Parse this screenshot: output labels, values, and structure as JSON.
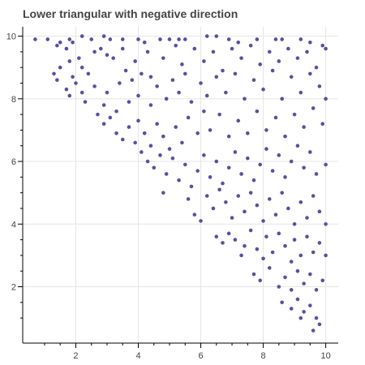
{
  "chart_data": {
    "type": "scatter",
    "title": "Lower triangular with negative direction",
    "xlabel": "",
    "ylabel": "",
    "xlim": [
      0.3,
      10.4
    ],
    "ylim": [
      0.2,
      10.3
    ],
    "x_ticks": [
      2,
      4,
      6,
      8,
      10
    ],
    "y_ticks": [
      2,
      4,
      6,
      8,
      10
    ],
    "grid": true,
    "marker_color": "#5a4fa0",
    "points_rule": "y > 10 - x (lower triangular, negative direction); values read approximately from the plot",
    "points": [
      [
        0.7,
        9.9
      ],
      [
        1.1,
        9.9
      ],
      [
        1.4,
        9.7
      ],
      [
        1.5,
        9.8
      ],
      [
        1.7,
        9.6
      ],
      [
        1.8,
        9.9
      ],
      [
        1.9,
        9.8
      ],
      [
        2.2,
        10.0
      ],
      [
        2.5,
        9.9
      ],
      [
        2.9,
        10.0
      ],
      [
        3.1,
        9.9
      ],
      [
        3.5,
        9.9
      ],
      [
        4.0,
        9.9
      ],
      [
        4.2,
        9.8
      ],
      [
        4.7,
        9.9
      ],
      [
        5.0,
        9.9
      ],
      [
        5.3,
        9.9
      ],
      [
        5.5,
        9.9
      ],
      [
        6.2,
        10.0
      ],
      [
        6.5,
        10.0
      ],
      [
        6.9,
        9.9
      ],
      [
        7.2,
        9.8
      ],
      [
        7.8,
        9.9
      ],
      [
        8.4,
        9.9
      ],
      [
        8.6,
        9.9
      ],
      [
        9.2,
        9.9
      ],
      [
        9.5,
        9.8
      ],
      [
        9.9,
        9.7
      ],
      [
        1.3,
        8.8
      ],
      [
        1.4,
        8.6
      ],
      [
        1.5,
        9.0
      ],
      [
        1.8,
        9.2
      ],
      [
        1.9,
        8.7
      ],
      [
        2.1,
        9.3
      ],
      [
        2.2,
        9.0
      ],
      [
        2.4,
        8.8
      ],
      [
        2.6,
        9.5
      ],
      [
        2.8,
        9.6
      ],
      [
        3.0,
        9.4
      ],
      [
        3.2,
        9.3
      ],
      [
        3.5,
        9.6
      ],
      [
        3.6,
        8.9
      ],
      [
        3.9,
        9.2
      ],
      [
        4.3,
        9.5
      ],
      [
        4.4,
        8.7
      ],
      [
        4.8,
        9.3
      ],
      [
        5.2,
        9.7
      ],
      [
        5.4,
        9.1
      ],
      [
        5.8,
        9.6
      ],
      [
        6.1,
        9.2
      ],
      [
        6.4,
        9.5
      ],
      [
        6.7,
        8.9
      ],
      [
        7.0,
        9.6
      ],
      [
        7.3,
        9.3
      ],
      [
        7.6,
        9.7
      ],
      [
        7.9,
        9.1
      ],
      [
        8.2,
        9.5
      ],
      [
        8.5,
        9.2
      ],
      [
        8.8,
        9.6
      ],
      [
        9.1,
        9.3
      ],
      [
        9.4,
        9.5
      ],
      [
        9.7,
        9.0
      ],
      [
        10.0,
        9.6
      ],
      [
        1.7,
        8.3
      ],
      [
        1.8,
        8.1
      ],
      [
        2.0,
        8.5
      ],
      [
        2.2,
        8.2
      ],
      [
        2.3,
        7.9
      ],
      [
        2.6,
        8.4
      ],
      [
        2.9,
        7.8
      ],
      [
        3.0,
        8.2
      ],
      [
        3.3,
        7.6
      ],
      [
        3.4,
        8.5
      ],
      [
        3.7,
        7.9
      ],
      [
        3.8,
        8.6
      ],
      [
        4.0,
        8.1
      ],
      [
        4.1,
        8.8
      ],
      [
        4.4,
        7.8
      ],
      [
        4.6,
        8.4
      ],
      [
        4.9,
        8.0
      ],
      [
        5.1,
        8.6
      ],
      [
        5.3,
        8.2
      ],
      [
        5.5,
        8.8
      ],
      [
        5.7,
        7.9
      ],
      [
        6.0,
        8.5
      ],
      [
        6.2,
        8.1
      ],
      [
        6.5,
        8.7
      ],
      [
        6.8,
        8.2
      ],
      [
        7.1,
        8.8
      ],
      [
        7.4,
        8.0
      ],
      [
        7.7,
        8.6
      ],
      [
        8.0,
        8.3
      ],
      [
        8.3,
        8.9
      ],
      [
        8.6,
        8.0
      ],
      [
        8.9,
        8.7
      ],
      [
        9.2,
        8.2
      ],
      [
        9.5,
        8.8
      ],
      [
        9.8,
        8.4
      ],
      [
        10.0,
        8.0
      ],
      [
        2.7,
        7.5
      ],
      [
        2.9,
        7.2
      ],
      [
        3.1,
        7.4
      ],
      [
        3.3,
        6.9
      ],
      [
        3.5,
        6.7
      ],
      [
        3.7,
        7.1
      ],
      [
        3.9,
        6.6
      ],
      [
        4.0,
        7.3
      ],
      [
        4.2,
        6.9
      ],
      [
        4.4,
        6.5
      ],
      [
        4.6,
        7.2
      ],
      [
        4.8,
        6.8
      ],
      [
        5.0,
        6.4
      ],
      [
        5.2,
        7.1
      ],
      [
        5.4,
        6.6
      ],
      [
        5.6,
        7.4
      ],
      [
        5.9,
        6.9
      ],
      [
        6.1,
        7.6
      ],
      [
        6.3,
        7.0
      ],
      [
        6.6,
        7.5
      ],
      [
        6.9,
        6.8
      ],
      [
        7.2,
        7.3
      ],
      [
        7.5,
        6.9
      ],
      [
        7.8,
        7.6
      ],
      [
        8.1,
        7.0
      ],
      [
        8.4,
        7.4
      ],
      [
        8.7,
        6.8
      ],
      [
        9.0,
        7.5
      ],
      [
        9.3,
        7.1
      ],
      [
        9.6,
        7.7
      ],
      [
        9.9,
        7.2
      ],
      [
        4.1,
        6.3
      ],
      [
        4.3,
        6.0
      ],
      [
        4.5,
        5.8
      ],
      [
        4.7,
        6.2
      ],
      [
        4.9,
        5.6
      ],
      [
        5.1,
        6.1
      ],
      [
        5.3,
        5.4
      ],
      [
        5.5,
        5.9
      ],
      [
        5.7,
        5.2
      ],
      [
        5.9,
        5.7
      ],
      [
        6.1,
        6.2
      ],
      [
        6.3,
        5.5
      ],
      [
        6.5,
        6.0
      ],
      [
        6.7,
        5.3
      ],
      [
        6.9,
        5.8
      ],
      [
        7.1,
        6.3
      ],
      [
        7.3,
        5.6
      ],
      [
        7.5,
        6.1
      ],
      [
        7.7,
        5.4
      ],
      [
        7.9,
        5.9
      ],
      [
        8.1,
        6.4
      ],
      [
        8.3,
        5.7
      ],
      [
        8.5,
        6.2
      ],
      [
        8.7,
        5.5
      ],
      [
        8.9,
        6.0
      ],
      [
        9.1,
        6.5
      ],
      [
        9.3,
        5.8
      ],
      [
        9.5,
        6.3
      ],
      [
        9.7,
        5.6
      ],
      [
        10.0,
        5.9
      ],
      [
        4.8,
        5.0
      ],
      [
        5.6,
        4.8
      ],
      [
        5.8,
        4.3
      ],
      [
        6.0,
        4.1
      ],
      [
        6.2,
        4.9
      ],
      [
        6.4,
        4.5
      ],
      [
        6.6,
        5.1
      ],
      [
        6.8,
        4.7
      ],
      [
        7.0,
        4.2
      ],
      [
        7.2,
        4.9
      ],
      [
        7.4,
        4.4
      ],
      [
        7.6,
        5.0
      ],
      [
        7.8,
        4.6
      ],
      [
        8.0,
        4.1
      ],
      [
        8.2,
        4.8
      ],
      [
        8.4,
        4.3
      ],
      [
        8.6,
        5.0
      ],
      [
        8.8,
        4.5
      ],
      [
        9.0,
        4.0
      ],
      [
        9.2,
        4.7
      ],
      [
        9.4,
        4.2
      ],
      [
        9.6,
        4.9
      ],
      [
        9.8,
        4.4
      ],
      [
        10.0,
        4.0
      ],
      [
        6.5,
        3.6
      ],
      [
        6.7,
        3.4
      ],
      [
        6.9,
        3.7
      ],
      [
        7.1,
        3.5
      ],
      [
        7.3,
        3.0
      ],
      [
        7.4,
        3.3
      ],
      [
        7.6,
        3.8
      ],
      [
        7.8,
        3.2
      ],
      [
        8.0,
        2.9
      ],
      [
        8.1,
        3.6
      ],
      [
        8.3,
        3.1
      ],
      [
        8.5,
        3.7
      ],
      [
        8.7,
        3.3
      ],
      [
        8.9,
        2.8
      ],
      [
        9.0,
        3.5
      ],
      [
        9.2,
        3.0
      ],
      [
        9.4,
        3.6
      ],
      [
        9.6,
        3.1
      ],
      [
        9.8,
        3.4
      ],
      [
        10.0,
        3.0
      ],
      [
        7.7,
        2.4
      ],
      [
        7.9,
        2.2
      ],
      [
        8.2,
        2.6
      ],
      [
        8.5,
        2.0
      ],
      [
        8.7,
        2.3
      ],
      [
        8.9,
        1.9
      ],
      [
        9.1,
        2.5
      ],
      [
        9.3,
        2.1
      ],
      [
        9.5,
        2.4
      ],
      [
        9.7,
        1.9
      ],
      [
        9.9,
        2.2
      ],
      [
        8.6,
        1.5
      ],
      [
        8.9,
        1.3
      ],
      [
        9.1,
        1.6
      ],
      [
        9.3,
        1.2
      ],
      [
        9.5,
        1.4
      ],
      [
        9.7,
        1.0
      ],
      [
        9.8,
        0.8
      ],
      [
        9.6,
        0.6
      ],
      [
        9.2,
        1.0
      ]
    ]
  }
}
